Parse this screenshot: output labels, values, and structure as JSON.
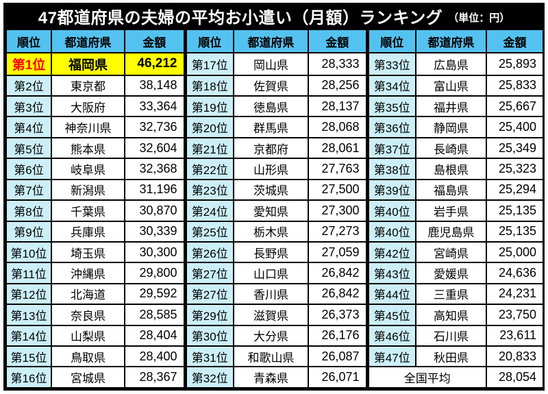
{
  "title": {
    "main": "47都道府県の夫婦の平均お小遣い（月額）ランキング",
    "unit": "（単位：円）"
  },
  "national_average": {
    "label": "全国平均",
    "amount": "28,054"
  },
  "chart_data": {
    "type": "table",
    "title": "47都道府県の夫婦の平均お小遣い（月額）ランキング",
    "unit": "円",
    "columns": [
      "順位",
      "都道府県",
      "金額"
    ],
    "layout": "3つの列グループ（1〜16位・17〜32位・33〜47位＋全国平均）",
    "highlight_row_index": 0,
    "rows": [
      [
        "第1位",
        "福岡県",
        "46,212"
      ],
      [
        "第2位",
        "東京都",
        "38,148"
      ],
      [
        "第3位",
        "大阪府",
        "33,364"
      ],
      [
        "第4位",
        "神奈川県",
        "32,736"
      ],
      [
        "第5位",
        "熊本県",
        "32,604"
      ],
      [
        "第6位",
        "岐阜県",
        "32,368"
      ],
      [
        "第7位",
        "新潟県",
        "31,196"
      ],
      [
        "第8位",
        "千葉県",
        "30,870"
      ],
      [
        "第9位",
        "兵庫県",
        "30,339"
      ],
      [
        "第10位",
        "埼玉県",
        "30,300"
      ],
      [
        "第11位",
        "沖縄県",
        "29,800"
      ],
      [
        "第12位",
        "北海道",
        "29,592"
      ],
      [
        "第13位",
        "奈良県",
        "28,585"
      ],
      [
        "第14位",
        "山梨県",
        "28,404"
      ],
      [
        "第15位",
        "鳥取県",
        "28,400"
      ],
      [
        "第16位",
        "宮城県",
        "28,367"
      ],
      [
        "第17位",
        "岡山県",
        "28,333"
      ],
      [
        "第18位",
        "佐賀県",
        "28,256"
      ],
      [
        "第19位",
        "徳島県",
        "28,137"
      ],
      [
        "第20位",
        "群馬県",
        "28,068"
      ],
      [
        "第21位",
        "京都府",
        "28,061"
      ],
      [
        "第22位",
        "山形県",
        "27,763"
      ],
      [
        "第23位",
        "茨城県",
        "27,500"
      ],
      [
        "第24位",
        "愛知県",
        "27,300"
      ],
      [
        "第25位",
        "栃木県",
        "27,273"
      ],
      [
        "第26位",
        "長野県",
        "27,059"
      ],
      [
        "第27位",
        "山口県",
        "26,842"
      ],
      [
        "第27位",
        "香川県",
        "26,842"
      ],
      [
        "第29位",
        "滋賀県",
        "26,373"
      ],
      [
        "第30位",
        "大分県",
        "26,176"
      ],
      [
        "第31位",
        "和歌山県",
        "26,087"
      ],
      [
        "第32位",
        "青森県",
        "26,071"
      ],
      [
        "第33位",
        "広島県",
        "25,893"
      ],
      [
        "第34位",
        "富山県",
        "25,833"
      ],
      [
        "第35位",
        "福井県",
        "25,667"
      ],
      [
        "第36位",
        "静岡県",
        "25,400"
      ],
      [
        "第37位",
        "長崎県",
        "25,349"
      ],
      [
        "第38位",
        "島根県",
        "25,323"
      ],
      [
        "第39位",
        "福島県",
        "25,294"
      ],
      [
        "第40位",
        "岩手県",
        "25,135"
      ],
      [
        "第40位",
        "鹿児島県",
        "25,135"
      ],
      [
        "第42位",
        "宮崎県",
        "25,000"
      ],
      [
        "第43位",
        "愛媛県",
        "24,636"
      ],
      [
        "第44位",
        "三重県",
        "24,231"
      ],
      [
        "第45位",
        "高知県",
        "23,750"
      ],
      [
        "第46位",
        "石川県",
        "23,611"
      ],
      [
        "第47位",
        "秋田県",
        "20,833"
      ]
    ]
  },
  "colors": {
    "title_bg": "#000000",
    "title_text": "#FFFFFF",
    "header_bg": "#54C2F0",
    "rank_bg": "#CCEFF7",
    "cell_bg": "#FFFFFF",
    "highlight_bg": "#FFFF00",
    "rank1_text": "#FF0000",
    "border": "#000000"
  }
}
